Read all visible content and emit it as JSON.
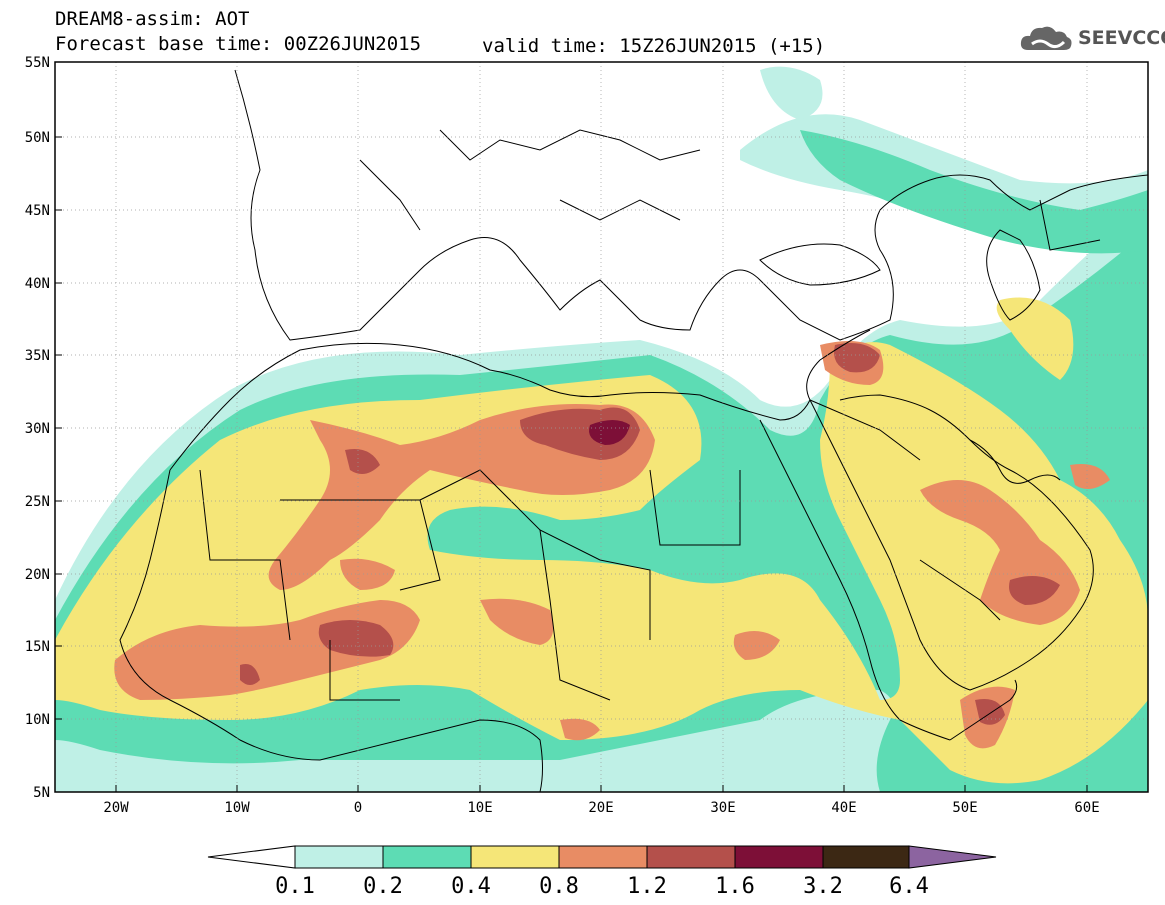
{
  "header": {
    "title_line1": "DREAM8-assim: AOT",
    "base_time": "Forecast base time: 00Z26JUN2015",
    "valid_time": "valid time: 15Z26JUN2015 (+15)"
  },
  "logo": {
    "text": "SEEVCCC",
    "icon": "cloud-icon"
  },
  "map": {
    "lon_range": [
      -25,
      65
    ],
    "lat_range": [
      5,
      55
    ],
    "lat_labels": [
      "55N",
      "50N",
      "45N",
      "40N",
      "35N",
      "30N",
      "25N",
      "20N",
      "15N",
      "10N",
      "5N"
    ],
    "lon_labels": [
      "20W",
      "10W",
      "0",
      "10E",
      "20E",
      "30E",
      "40E",
      "50E",
      "60E"
    ]
  },
  "colorbar": {
    "labels": [
      "0.1",
      "0.2",
      "0.4",
      "0.8",
      "1.2",
      "1.6",
      "3.2",
      "6.4"
    ],
    "colors": [
      "#ffffff",
      "#bff0e6",
      "#5ddcb4",
      "#f5e678",
      "#e88c64",
      "#b4504b",
      "#7d0f37",
      "#3c2814",
      "#8c64a0"
    ]
  }
}
